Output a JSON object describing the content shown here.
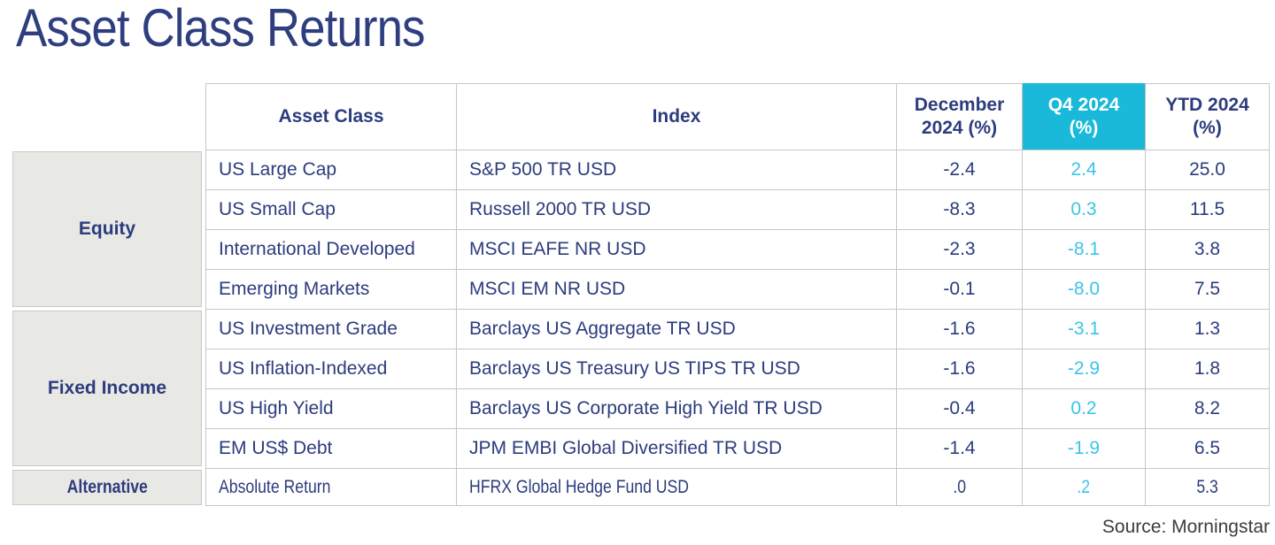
{
  "title": "Asset Class Returns",
  "source": "Source: Morningstar",
  "colors": {
    "heading_text": "#2c3c7d",
    "accent_cyan_header": "#1ab9d9",
    "q4_value_cyan": "#3bc4e6",
    "group_cell_bg": "#e8e8e4",
    "grid_border": "#c6c6c6"
  },
  "table": {
    "headers": {
      "asset_class": "Asset Class",
      "index": "Index",
      "december_line1": "December",
      "december_line2": "2024 (%)",
      "q4_line1": "Q4 2024",
      "q4_line2": "(%)",
      "ytd_line1": "YTD 2024",
      "ytd_line2": "(%)"
    },
    "groups": [
      {
        "name": "Equity",
        "rows": [
          {
            "asset_class": "US Large Cap",
            "index": "S&P 500 TR USD",
            "december": "-2.4",
            "q4": "2.4",
            "ytd": "25.0"
          },
          {
            "asset_class": "US Small Cap",
            "index": "Russell 2000 TR USD",
            "december": "-8.3",
            "q4": "0.3",
            "ytd": "11.5"
          },
          {
            "asset_class": "International Developed",
            "index": "MSCI EAFE NR USD",
            "december": "-2.3",
            "q4": "-8.1",
            "ytd": "3.8"
          },
          {
            "asset_class": "Emerging Markets",
            "index": "MSCI EM NR USD",
            "december": "-0.1",
            "q4": "-8.0",
            "ytd": "7.5"
          }
        ]
      },
      {
        "name": "Fixed Income",
        "rows": [
          {
            "asset_class": "US Investment Grade",
            "index": "Barclays US Aggregate TR USD",
            "december": "-1.6",
            "q4": "-3.1",
            "ytd": "1.3"
          },
          {
            "asset_class": "US Inflation-Indexed",
            "index": "Barclays US Treasury US TIPS TR USD",
            "december": "-1.6",
            "q4": "-2.9",
            "ytd": "1.8"
          },
          {
            "asset_class": "US High Yield",
            "index": "Barclays US Corporate High Yield TR USD",
            "december": "-0.4",
            "q4": "0.2",
            "ytd": "8.2"
          },
          {
            "asset_class": "EM US$ Debt",
            "index": "JPM EMBI Global Diversified TR USD",
            "december": "-1.4",
            "q4": "-1.9",
            "ytd": "6.5"
          }
        ]
      },
      {
        "name": "Alternative",
        "rows": [
          {
            "asset_class": "Absolute Return",
            "index": "HFRX Global Hedge Fund USD",
            "december": ".0",
            "q4": ".2",
            "ytd": "5.3"
          }
        ]
      }
    ]
  },
  "chart_data": {
    "type": "table",
    "title": "Asset Class Returns",
    "columns": [
      "Group",
      "Asset Class",
      "Index",
      "December 2024 (%)",
      "Q4 2024 (%)",
      "YTD 2024 (%)"
    ],
    "rows": [
      [
        "Equity",
        "US Large Cap",
        "S&P 500 TR USD",
        -2.4,
        2.4,
        25.0
      ],
      [
        "Equity",
        "US Small Cap",
        "Russell 2000 TR USD",
        -8.3,
        0.3,
        11.5
      ],
      [
        "Equity",
        "International Developed",
        "MSCI EAFE NR USD",
        -2.3,
        -8.1,
        3.8
      ],
      [
        "Equity",
        "Emerging Markets",
        "MSCI EM NR USD",
        -0.1,
        -8.0,
        7.5
      ],
      [
        "Fixed Income",
        "US Investment Grade",
        "Barclays US Aggregate TR USD",
        -1.6,
        -3.1,
        1.3
      ],
      [
        "Fixed Income",
        "US Inflation-Indexed",
        "Barclays US Treasury US TIPS TR USD",
        -1.6,
        -2.9,
        1.8
      ],
      [
        "Fixed Income",
        "US High Yield",
        "Barclays US Corporate High Yield TR USD",
        -0.4,
        0.2,
        8.2
      ],
      [
        "Fixed Income",
        "EM US$ Debt",
        "JPM EMBI Global Diversified TR USD",
        -1.4,
        -1.9,
        6.5
      ],
      [
        "Alternative",
        "Absolute Return",
        "HFRX Global Hedge Fund USD",
        0.0,
        0.2,
        5.3
      ]
    ],
    "source": "Source: Morningstar"
  }
}
